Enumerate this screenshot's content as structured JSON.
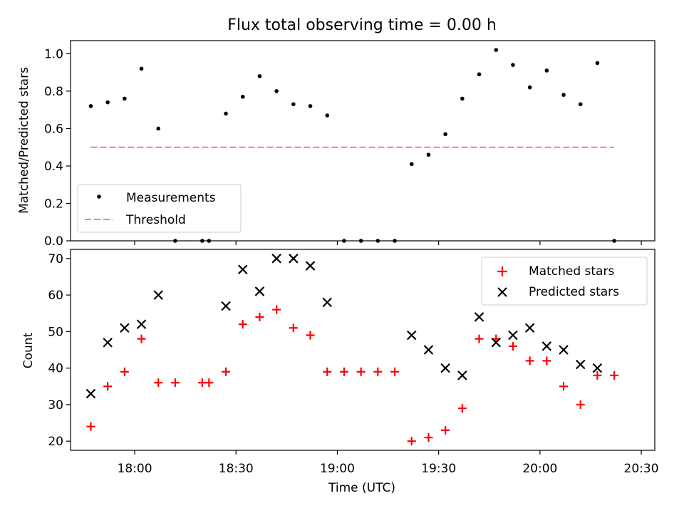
{
  "title": "Flux total observing time = 0.00 h",
  "colors": {
    "threshold": "#ff7f7f",
    "matched": "#ff0000",
    "predicted": "#000000",
    "measurements": "#000000"
  },
  "chart_data": [
    {
      "type": "scatter",
      "panel": "top",
      "title": "Flux total observing time = 0.00 h",
      "xlabel": "",
      "ylabel": "Matched/Predicted stars",
      "xlim": [
        "17:41",
        "20:34"
      ],
      "ylim": [
        0,
        1.07
      ],
      "yticks": [
        "0.0",
        "0.2",
        "0.4",
        "0.6",
        "0.8",
        "1.0"
      ],
      "yticks_values": [
        0,
        0.2,
        0.4,
        0.6,
        0.8,
        1.0
      ],
      "legend_position": "lower-left",
      "grid": false,
      "series": [
        {
          "name": "Measurements",
          "marker": "dot",
          "x": [
            "17:47",
            "17:52",
            "17:57",
            "18:02",
            "18:07",
            "18:12",
            "18:20",
            "18:22",
            "18:27",
            "18:32",
            "18:37",
            "18:42",
            "18:47",
            "18:52",
            "18:57",
            "19:02",
            "19:07",
            "19:12",
            "19:17",
            "19:22",
            "19:27",
            "19:32",
            "19:37",
            "19:42",
            "19:47",
            "19:52",
            "19:57",
            "20:02",
            "20:07",
            "20:12",
            "20:17",
            "20:22"
          ],
          "y": [
            0.72,
            0.74,
            0.76,
            0.92,
            0.6,
            0.0,
            0.0,
            0.0,
            0.68,
            0.77,
            0.88,
            0.8,
            0.73,
            0.72,
            0.67,
            0.0,
            0.0,
            0.0,
            0.0,
            0.41,
            0.46,
            0.57,
            0.76,
            0.89,
            1.02,
            0.94,
            0.82,
            0.91,
            0.78,
            0.73,
            0.95,
            0.0
          ]
        },
        {
          "name": "Threshold",
          "line": "dashed",
          "x": [
            "17:47",
            "20:22"
          ],
          "y": [
            0.5,
            0.5
          ]
        }
      ]
    },
    {
      "type": "scatter",
      "panel": "bottom",
      "xlabel": "Time (UTC)",
      "ylabel": "Count",
      "xlim": [
        "17:41",
        "20:34"
      ],
      "ylim": [
        17.5,
        72.5
      ],
      "xticks": [
        "18:00",
        "18:30",
        "19:00",
        "19:30",
        "20:00",
        "20:30"
      ],
      "yticks": [
        "20",
        "30",
        "40",
        "50",
        "60",
        "70"
      ],
      "yticks_values": [
        20,
        30,
        40,
        50,
        60,
        70
      ],
      "legend_position": "upper-right",
      "grid": false,
      "series": [
        {
          "name": "Matched stars",
          "marker": "plus",
          "x": [
            "17:47",
            "17:52",
            "17:57",
            "18:02",
            "18:07",
            "18:12",
            "18:20",
            "18:22",
            "18:27",
            "18:32",
            "18:37",
            "18:42",
            "18:47",
            "18:52",
            "18:57",
            "19:02",
            "19:07",
            "19:12",
            "19:17",
            "19:22",
            "19:27",
            "19:32",
            "19:37",
            "19:42",
            "19:47",
            "19:52",
            "19:57",
            "20:02",
            "20:07",
            "20:12",
            "20:17",
            "20:22"
          ],
          "y": [
            24,
            35,
            39,
            48,
            36,
            36,
            36,
            36,
            39,
            52,
            54,
            56,
            51,
            49,
            39,
            39,
            39,
            39,
            39,
            20,
            21,
            23,
            29,
            48,
            48,
            46,
            42,
            42,
            35,
            30,
            38,
            38
          ]
        },
        {
          "name": "Predicted stars",
          "marker": "x",
          "x": [
            "17:47",
            "17:52",
            "17:57",
            "18:02",
            "18:07",
            "18:27",
            "18:32",
            "18:37",
            "18:42",
            "18:47",
            "18:52",
            "18:57",
            "19:22",
            "19:27",
            "19:32",
            "19:37",
            "19:42",
            "19:47",
            "19:52",
            "19:57",
            "20:02",
            "20:07",
            "20:12",
            "20:17"
          ],
          "y": [
            33,
            47,
            51,
            52,
            60,
            57,
            67,
            61,
            70,
            70,
            68,
            58,
            49,
            45,
            40,
            38,
            54,
            47,
            49,
            51,
            46,
            45,
            41,
            40
          ]
        }
      ]
    }
  ]
}
